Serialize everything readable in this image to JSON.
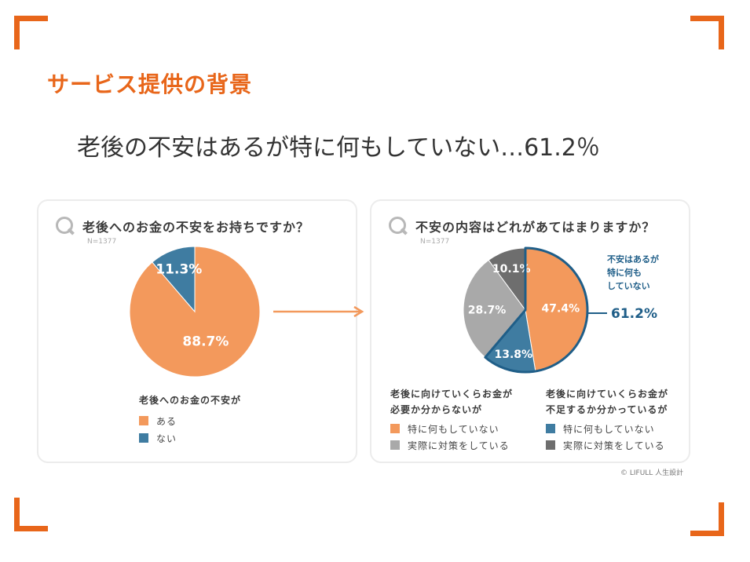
{
  "slide": {
    "title": "サービス提供の背景",
    "headline": "老後の不安はあるが特に何もしていない…61.2％",
    "credit": "© LIFULL 人生設計",
    "accent_color": "#e8661a"
  },
  "left_card": {
    "question": "老後へのお金の不安をお持ちですか？",
    "n": "N=1377",
    "legend_title": "老後へのお金の不安が",
    "legend_items": [
      {
        "label": "ある",
        "color": "#f3995c"
      },
      {
        "label": "ない",
        "color": "#3f7ca1"
      }
    ]
  },
  "right_card": {
    "question": "不安の内容はどれがあてはまりますか？",
    "n": "N=1377",
    "callout_text": "不安はあるが\n特に何も\nしていない",
    "callout_value": "61.2%",
    "legend_group1_title": "老後に向けていくらお金が\n必要か分からないが",
    "legend_group2_title": "老後に向けていくらお金が\n不足するか分かっているが",
    "legend_items": [
      {
        "label": "特に何もしていない",
        "color": "#f3995c"
      },
      {
        "label": "実際に対策をしている",
        "color": "#a9a9a9"
      },
      {
        "label": "特に何もしていない",
        "color": "#3f7ca1"
      },
      {
        "label": "実際に対策をしている",
        "color": "#6e6e6e"
      }
    ]
  },
  "chart_data": [
    {
      "type": "pie",
      "title": "老後へのお金の不安をお持ちですか？",
      "categories": [
        "ある",
        "ない"
      ],
      "values": [
        88.7,
        11.3
      ],
      "labels": [
        "88.7%",
        "11.3%"
      ],
      "colors": [
        "#f3995c",
        "#3f7ca1"
      ]
    },
    {
      "type": "pie",
      "title": "不安の内容はどれがあてはまりますか？",
      "categories": [
        "特に何もしていない",
        "特に何もしていない",
        "実際に対策をしている",
        "実際に対策をしている"
      ],
      "values": [
        47.4,
        13.8,
        28.7,
        10.1
      ],
      "labels": [
        "47.4%",
        "13.8%",
        "28.7%",
        "10.1%"
      ],
      "colors": [
        "#f3995c",
        "#3f7ca1",
        "#a9a9a9",
        "#6e6e6e"
      ]
    }
  ]
}
